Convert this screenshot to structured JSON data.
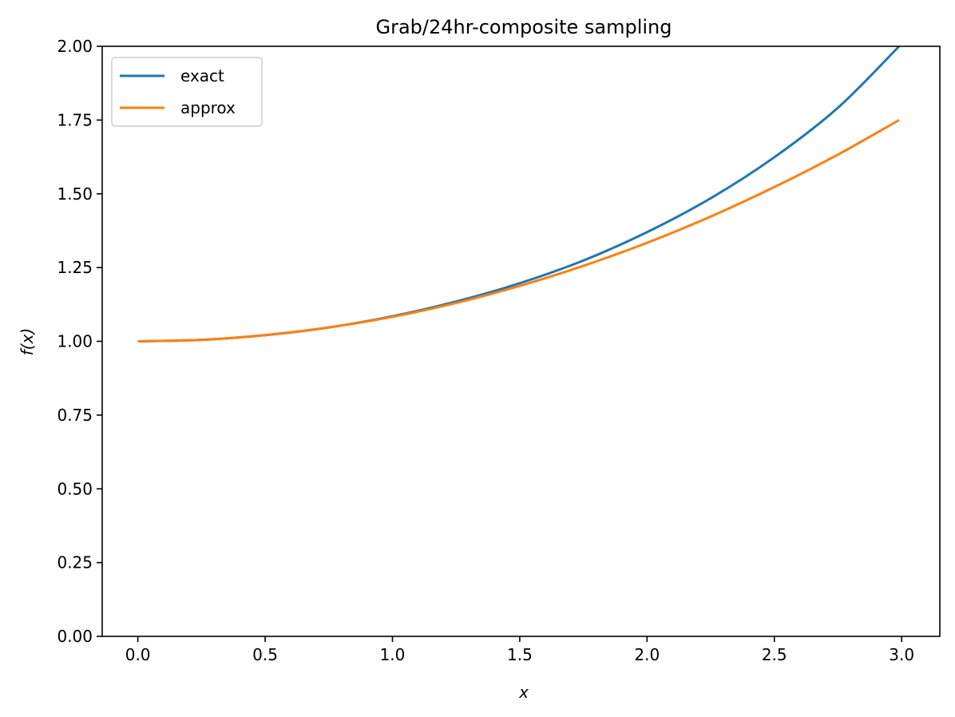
{
  "chart_data": {
    "type": "line",
    "title": "Grab/24hr-composite sampling",
    "xlabel": "x",
    "ylabel": "f(x)",
    "xlim": [
      -0.14,
      3.15
    ],
    "ylim": [
      0,
      2
    ],
    "xticks": [
      "0.0",
      "0.5",
      "1.0",
      "1.5",
      "2.0",
      "2.5",
      "3.0"
    ],
    "yticks": [
      "0.00",
      "0.25",
      "0.50",
      "0.75",
      "1.00",
      "1.25",
      "1.50",
      "1.75",
      "2.00"
    ],
    "grid": false,
    "legend_position": "top-left",
    "series": [
      {
        "name": "exact",
        "color": "#1f77b4",
        "x": [
          0.0,
          0.25,
          0.5,
          0.75,
          1.0,
          1.25,
          1.5,
          1.75,
          2.0,
          2.25,
          2.5,
          2.75,
          2.99
        ],
        "y": [
          1.0,
          1.005,
          1.021,
          1.047,
          1.085,
          1.135,
          1.197,
          1.274,
          1.37,
          1.485,
          1.624,
          1.792,
          2.0
        ]
      },
      {
        "name": "approx",
        "color": "#ff7f0e",
        "x": [
          0.0,
          0.25,
          0.5,
          0.75,
          1.0,
          1.25,
          1.5,
          1.75,
          2.0,
          2.25,
          2.5,
          2.75,
          2.99
        ],
        "y": [
          1.0,
          1.005,
          1.021,
          1.047,
          1.083,
          1.13,
          1.188,
          1.256,
          1.334,
          1.423,
          1.523,
          1.633,
          1.75
        ]
      }
    ]
  }
}
